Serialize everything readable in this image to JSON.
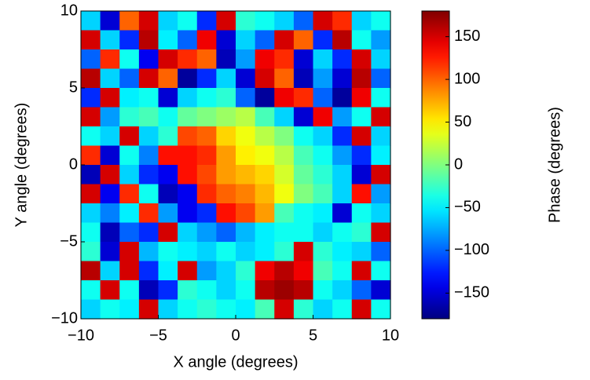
{
  "chart_data": {
    "type": "heatmap",
    "colormap": "jet",
    "xlabel": "X angle (degrees)",
    "ylabel": "Y angle (degrees)",
    "colorbar_label": "Phase (degrees)",
    "xlim": [
      -10,
      10
    ],
    "ylim": [
      -10,
      10
    ],
    "clim": [
      -180,
      180
    ],
    "xticks": [
      {
        "value": -10,
        "label": "−10"
      },
      {
        "value": -5,
        "label": "−5"
      },
      0,
      5,
      10
    ],
    "yticks": [
      {
        "value": -10,
        "label": "−10"
      },
      {
        "value": -5,
        "label": "−5"
      },
      0,
      5,
      10
    ],
    "cticks": [
      {
        "value": -150,
        "label": "−150"
      },
      {
        "value": -100,
        "label": "−100"
      },
      {
        "value": -50,
        "label": "−50"
      },
      0,
      50,
      100,
      150
    ],
    "z": [
      [
        -60,
        -150,
        100,
        150,
        -60,
        -40,
        -120,
        150,
        -30,
        -40,
        -60,
        -100,
        150,
        120,
        -60,
        -40
      ],
      [
        150,
        -60,
        -120,
        160,
        -50,
        -100,
        140,
        -150,
        -60,
        -100,
        150,
        100,
        -120,
        160,
        -40,
        -80
      ],
      [
        -100,
        120,
        -40,
        -140,
        150,
        120,
        100,
        -160,
        -80,
        140,
        120,
        -150,
        -60,
        -120,
        150,
        -60
      ],
      [
        160,
        -60,
        -100,
        150,
        100,
        -170,
        -120,
        -60,
        -150,
        150,
        100,
        -160,
        -80,
        -150,
        160,
        -100
      ],
      [
        -120,
        150,
        -50,
        -40,
        -150,
        -60,
        -40,
        -30,
        -100,
        -170,
        140,
        120,
        -100,
        -170,
        140,
        -40
      ],
      [
        150,
        -80,
        -30,
        -20,
        -40,
        -10,
        0,
        10,
        20,
        -20,
        -60,
        -150,
        140,
        -80,
        -40,
        150
      ],
      [
        -40,
        -60,
        150,
        -60,
        -30,
        110,
        100,
        60,
        40,
        20,
        0,
        -40,
        -60,
        -120,
        150,
        -60
      ],
      [
        120,
        -150,
        -40,
        -90,
        130,
        130,
        120,
        80,
        50,
        40,
        20,
        -20,
        -40,
        -80,
        -120,
        -50
      ],
      [
        -160,
        150,
        -60,
        -120,
        -140,
        130,
        110,
        80,
        70,
        60,
        30,
        -10,
        -30,
        -60,
        -150,
        150
      ],
      [
        150,
        -140,
        120,
        -40,
        -160,
        -140,
        120,
        100,
        90,
        70,
        40,
        0,
        -20,
        -60,
        130,
        -80
      ],
      [
        -60,
        -90,
        -50,
        120,
        -80,
        -140,
        -120,
        130,
        110,
        80,
        -20,
        -40,
        -50,
        -150,
        -40,
        -60
      ],
      [
        -40,
        -160,
        -100,
        -120,
        150,
        -60,
        -80,
        -100,
        -70,
        -50,
        -40,
        -40,
        -60,
        -40,
        -30,
        150
      ],
      [
        -30,
        -150,
        150,
        -70,
        -40,
        -50,
        -60,
        -40,
        -60,
        -50,
        -30,
        150,
        -30,
        -50,
        -60,
        -100
      ],
      [
        160,
        -60,
        150,
        -120,
        -50,
        150,
        -80,
        -60,
        -30,
        140,
        160,
        140,
        -20,
        -40,
        150,
        -40
      ],
      [
        -40,
        150,
        -40,
        -160,
        -120,
        -30,
        -40,
        -60,
        -40,
        160,
        170,
        160,
        -40,
        -60,
        -100,
        -150
      ],
      [
        -60,
        -40,
        -50,
        150,
        -60,
        -40,
        -30,
        -40,
        -50,
        -20,
        150,
        -30,
        -60,
        -40,
        150,
        -40
      ]
    ]
  }
}
